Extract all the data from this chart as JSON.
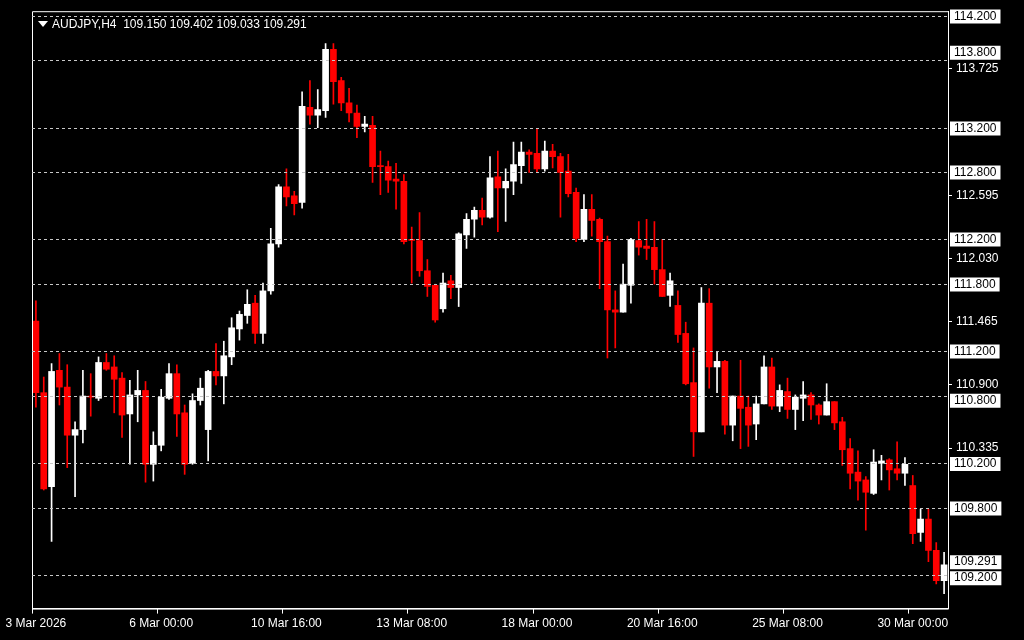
{
  "chart_data": {
    "type": "candlestick",
    "title": "AUDJPY,H4  109.150 109.402 109.033 109.291",
    "categories": [
      "3 Mar 2026",
      null,
      null,
      null,
      null,
      null,
      null,
      null,
      null,
      null,
      null,
      null,
      null,
      null,
      null,
      null,
      "6 Mar 00:00",
      null,
      null,
      null,
      null,
      null,
      null,
      null,
      null,
      null,
      null,
      null,
      null,
      null,
      null,
      null,
      "10 Mar 16:00",
      null,
      null,
      null,
      null,
      null,
      null,
      null,
      null,
      null,
      null,
      null,
      null,
      null,
      null,
      null,
      "13 Mar 08:00",
      null,
      null,
      null,
      null,
      null,
      null,
      null,
      null,
      null,
      null,
      null,
      null,
      null,
      null,
      null,
      "18 Mar 00:00",
      null,
      null,
      null,
      null,
      null,
      null,
      null,
      null,
      null,
      null,
      null,
      null,
      null,
      null,
      null,
      "20 Mar 16:00",
      null,
      null,
      null,
      null,
      null,
      null,
      null,
      null,
      null,
      null,
      null,
      null,
      null,
      null,
      null,
      "25 Mar 08:00",
      null,
      null,
      null,
      null,
      null,
      null,
      null,
      null,
      null,
      null,
      null,
      null,
      null,
      null,
      null,
      "30 Mar 00:00",
      null,
      null,
      null,
      null
    ],
    "ohlc": [
      [
        111.47,
        111.65,
        110.7,
        110.83
      ],
      [
        110.83,
        110.97,
        109.96,
        109.97
      ],
      [
        109.99,
        111.09,
        109.5,
        111.02
      ],
      [
        111.03,
        111.18,
        110.72,
        110.88
      ],
      [
        110.88,
        111.08,
        110.16,
        110.45
      ],
      [
        110.45,
        110.57,
        109.9,
        110.5
      ],
      [
        110.5,
        111.03,
        110.38,
        110.8
      ],
      [
        110.8,
        111.0,
        110.62,
        110.79
      ],
      [
        110.78,
        111.15,
        110.76,
        111.1
      ],
      [
        111.1,
        111.18,
        111.03,
        111.04
      ],
      [
        111.06,
        111.16,
        110.65,
        110.95
      ],
      [
        110.96,
        111.01,
        110.43,
        110.63
      ],
      [
        110.64,
        110.94,
        110.19,
        110.81
      ],
      [
        110.81,
        111.03,
        110.57,
        110.85
      ],
      [
        110.85,
        110.93,
        110.03,
        110.19
      ],
      [
        110.19,
        110.48,
        110.04,
        110.36
      ],
      [
        110.36,
        110.86,
        110.31,
        110.79
      ],
      [
        110.78,
        111.09,
        110.77,
        111.0
      ],
      [
        111.0,
        111.08,
        110.44,
        110.64
      ],
      [
        110.65,
        110.72,
        110.1,
        110.19
      ],
      [
        110.2,
        110.82,
        110.19,
        110.76
      ],
      [
        110.76,
        110.96,
        110.72,
        110.87
      ],
      [
        110.5,
        111.03,
        110.22,
        111.02
      ],
      [
        111.02,
        111.27,
        110.9,
        110.98
      ],
      [
        110.98,
        111.29,
        110.73,
        111.16
      ],
      [
        111.15,
        111.5,
        111.08,
        111.41
      ],
      [
        111.4,
        111.56,
        111.3,
        111.53
      ],
      [
        111.52,
        111.75,
        111.45,
        111.62
      ],
      [
        111.63,
        111.7,
        111.27,
        111.36
      ],
      [
        111.36,
        111.81,
        111.27,
        111.74
      ],
      [
        111.74,
        112.3,
        111.71,
        112.16
      ],
      [
        112.16,
        112.69,
        112.13,
        112.67
      ],
      [
        112.67,
        112.83,
        112.5,
        112.58
      ],
      [
        112.59,
        112.63,
        112.42,
        112.52
      ],
      [
        112.53,
        113.52,
        112.48,
        113.39
      ],
      [
        113.38,
        113.62,
        113.23,
        113.31
      ],
      [
        113.31,
        113.54,
        113.2,
        113.36
      ],
      [
        113.35,
        113.95,
        113.29,
        113.9
      ],
      [
        113.9,
        113.95,
        113.41,
        113.61
      ],
      [
        113.62,
        113.65,
        113.35,
        113.42
      ],
      [
        113.42,
        113.55,
        113.25,
        113.33
      ],
      [
        113.33,
        113.4,
        113.11,
        113.21
      ],
      [
        113.21,
        113.3,
        113.16,
        113.23
      ],
      [
        113.22,
        113.3,
        112.71,
        112.85
      ],
      [
        112.86,
        112.99,
        112.6,
        112.85
      ],
      [
        112.85,
        112.9,
        112.62,
        112.73
      ],
      [
        112.74,
        112.88,
        112.47,
        112.72
      ],
      [
        112.72,
        112.78,
        112.16,
        112.18
      ],
      [
        112.2,
        112.31,
        111.81,
        112.19
      ],
      [
        112.19,
        112.44,
        111.87,
        111.92
      ],
      [
        111.92,
        112.02,
        111.69,
        111.78
      ],
      [
        111.79,
        111.8,
        111.46,
        111.48
      ],
      [
        111.58,
        111.9,
        111.55,
        111.81
      ],
      [
        111.83,
        111.88,
        111.67,
        111.77
      ],
      [
        111.77,
        112.26,
        111.6,
        112.25
      ],
      [
        112.24,
        112.43,
        112.12,
        112.38
      ],
      [
        112.38,
        112.49,
        112.22,
        112.46
      ],
      [
        112.46,
        112.57,
        112.33,
        112.4
      ],
      [
        112.4,
        112.94,
        112.39,
        112.75
      ],
      [
        112.76,
        112.99,
        112.27,
        112.66
      ],
      [
        112.66,
        112.83,
        112.36,
        112.72
      ],
      [
        112.72,
        113.07,
        112.6,
        112.87
      ],
      [
        112.86,
        113.07,
        112.7,
        112.98
      ],
      [
        112.98,
        113.0,
        112.8,
        112.96
      ],
      [
        112.97,
        113.19,
        112.8,
        112.83
      ],
      [
        112.83,
        113.08,
        112.81,
        112.99
      ],
      [
        112.99,
        113.05,
        112.84,
        112.94
      ],
      [
        112.94,
        112.97,
        112.4,
        112.8
      ],
      [
        112.81,
        112.96,
        112.58,
        112.61
      ],
      [
        112.62,
        112.66,
        112.18,
        112.21
      ],
      [
        112.2,
        112.6,
        112.18,
        112.47
      ],
      [
        112.47,
        112.6,
        112.23,
        112.37
      ],
      [
        112.38,
        112.39,
        111.76,
        112.18
      ],
      [
        112.18,
        112.23,
        111.14,
        111.57
      ],
      [
        111.57,
        111.74,
        111.23,
        111.55
      ],
      [
        111.55,
        111.98,
        111.55,
        111.8
      ],
      [
        111.79,
        112.21,
        111.63,
        112.2
      ],
      [
        112.19,
        112.36,
        112.06,
        112.13
      ],
      [
        112.14,
        112.38,
        112.02,
        112.12
      ],
      [
        112.13,
        112.36,
        111.8,
        111.93
      ],
      [
        111.93,
        112.2,
        111.69,
        111.69
      ],
      [
        111.7,
        111.9,
        111.6,
        111.83
      ],
      [
        111.61,
        111.74,
        111.28,
        111.35
      ],
      [
        111.36,
        111.46,
        110.9,
        110.91
      ],
      [
        110.92,
        111.23,
        110.26,
        110.48
      ],
      [
        110.48,
        111.77,
        110.48,
        111.63
      ],
      [
        111.63,
        111.76,
        110.87,
        111.06
      ],
      [
        111.06,
        111.2,
        110.83,
        111.11
      ],
      [
        111.11,
        111.12,
        110.46,
        110.54
      ],
      [
        110.54,
        110.8,
        110.4,
        110.8
      ],
      [
        110.8,
        111.12,
        110.33,
        110.69
      ],
      [
        110.7,
        110.8,
        110.35,
        110.54
      ],
      [
        110.55,
        110.8,
        110.41,
        110.73
      ],
      [
        110.73,
        111.16,
        110.73,
        111.06
      ],
      [
        111.06,
        111.14,
        110.68,
        110.71
      ],
      [
        110.71,
        110.9,
        110.66,
        110.85
      ],
      [
        110.84,
        110.96,
        110.6,
        110.68
      ],
      [
        110.68,
        110.81,
        110.5,
        110.79
      ],
      [
        110.78,
        110.93,
        110.58,
        110.81
      ],
      [
        110.81,
        110.83,
        110.59,
        110.72
      ],
      [
        110.72,
        110.73,
        110.55,
        110.63
      ],
      [
        110.63,
        110.91,
        110.63,
        110.75
      ],
      [
        110.75,
        110.75,
        110.5,
        110.56
      ],
      [
        110.57,
        110.61,
        110.18,
        110.32
      ],
      [
        110.33,
        110.42,
        109.97,
        110.11
      ],
      [
        110.12,
        110.31,
        109.87,
        110.04
      ],
      [
        110.05,
        110.08,
        109.6,
        109.94
      ],
      [
        109.93,
        110.32,
        109.92,
        110.21
      ],
      [
        110.2,
        110.27,
        110.05,
        110.22
      ],
      [
        110.23,
        110.24,
        109.96,
        110.14
      ],
      [
        110.15,
        110.39,
        110.05,
        110.11
      ],
      [
        110.11,
        110.25,
        110.0,
        110.19
      ],
      [
        110.0,
        110.09,
        109.48,
        109.57
      ],
      [
        109.58,
        109.79,
        109.5,
        109.7
      ],
      [
        109.7,
        109.79,
        109.32,
        109.42
      ],
      [
        109.42,
        109.49,
        109.12,
        109.15
      ],
      [
        109.15,
        109.402,
        109.033,
        109.291
      ]
    ],
    "colors": [
      "#ff0000",
      "#ff0000",
      "#ffffff",
      "#ff0000",
      "#ff0000",
      "#ffffff",
      "#ffffff",
      "#ff0000",
      "#ffffff",
      "#ff0000",
      "#ff0000",
      "#ff0000",
      "#ffffff",
      "#ffffff",
      "#ff0000",
      "#ffffff",
      "#ffffff",
      "#ffffff",
      "#ff0000",
      "#ff0000",
      "#ffffff",
      "#ffffff",
      "#ffffff",
      "#ff0000",
      "#ffffff",
      "#ffffff",
      "#ffffff",
      "#ffffff",
      "#ff0000",
      "#ffffff",
      "#ffffff",
      "#ffffff",
      "#ff0000",
      "#ff0000",
      "#ffffff",
      "#ff0000",
      "#ffffff",
      "#ffffff",
      "#ff0000",
      "#ff0000",
      "#ff0000",
      "#ff0000",
      "#ffffff",
      "#ff0000",
      "#ff0000",
      "#ff0000",
      "#ff0000",
      "#ff0000",
      "#ff0000",
      "#ff0000",
      "#ff0000",
      "#ff0000",
      "#ffffff",
      "#ff0000",
      "#ffffff",
      "#ffffff",
      "#ffffff",
      "#ff0000",
      "#ffffff",
      "#ff0000",
      "#ffffff",
      "#ffffff",
      "#ffffff",
      "#ff0000",
      "#ff0000",
      "#ffffff",
      "#ff0000",
      "#ff0000",
      "#ff0000",
      "#ff0000",
      "#ffffff",
      "#ff0000",
      "#ff0000",
      "#ff0000",
      "#ff0000",
      "#ffffff",
      "#ffffff",
      "#ff0000",
      "#ff0000",
      "#ff0000",
      "#ff0000",
      "#ffffff",
      "#ff0000",
      "#ff0000",
      "#ff0000",
      "#ffffff",
      "#ff0000",
      "#ffffff",
      "#ff0000",
      "#ffffff",
      "#ff0000",
      "#ff0000",
      "#ffffff",
      "#ffffff",
      "#ff0000",
      "#ffffff",
      "#ff0000",
      "#ffffff",
      "#ffffff",
      "#ff0000",
      "#ff0000",
      "#ffffff",
      "#ff0000",
      "#ff0000",
      "#ff0000",
      "#ff0000",
      "#ff0000",
      "#ffffff",
      "#ffffff",
      "#ff0000",
      "#ff0000",
      "#ffffff",
      "#ff0000",
      "#ffffff",
      "#ff0000",
      "#ff0000",
      "#ffffff"
    ],
    "ylim": [
      108.9,
      114.24
    ],
    "yticks": [
      113.725,
      112.595,
      {
        "value": 112.03,
        "label": "112.030"
      },
      111.465,
      {
        "value": 110.9,
        "label": "110.900"
      },
      110.335
    ],
    "ref_lines": [
      {
        "axis": "y",
        "value": 114.2,
        "label": "114.200",
        "color": "#c8c8c8",
        "line_style": "dashed"
      },
      {
        "axis": "y",
        "value": 113.8,
        "label": "113.800",
        "color": "#c8c8c8",
        "line_style": "dashed"
      },
      {
        "axis": "y",
        "value": 113.2,
        "label": "113.200",
        "color": "#c8c8c8",
        "line_style": "dashed"
      },
      {
        "axis": "y",
        "value": 112.8,
        "label": "112.800",
        "color": "#c8c8c8",
        "line_style": "dashed"
      },
      {
        "axis": "y",
        "value": 112.2,
        "label": "112.200",
        "color": "#c8c8c8",
        "line_style": "dashed"
      },
      {
        "axis": "y",
        "value": 111.8,
        "label": "111.800",
        "color": "#c8c8c8",
        "line_style": "dashed"
      },
      {
        "axis": "y",
        "value": 111.2,
        "label": "111.200",
        "color": "#c8c8c8",
        "line_style": "dashed"
      },
      {
        "axis": "y",
        "value": 110.8,
        "label": "110.800",
        "color": "#c8c8c8",
        "line_style": "dashed"
      },
      {
        "axis": "y",
        "value": 110.2,
        "label": "110.200",
        "color": "#c8c8c8",
        "line_style": "dashed"
      },
      {
        "axis": "y",
        "value": 109.8,
        "label": "109.800",
        "color": "#c8c8c8",
        "line_style": "dashed"
      },
      {
        "axis": "y",
        "value": 109.2,
        "label": "109.200",
        "color": "#c8c8c8",
        "line_style": "dashed"
      }
    ],
    "annotations": [
      "109.291"
    ]
  }
}
